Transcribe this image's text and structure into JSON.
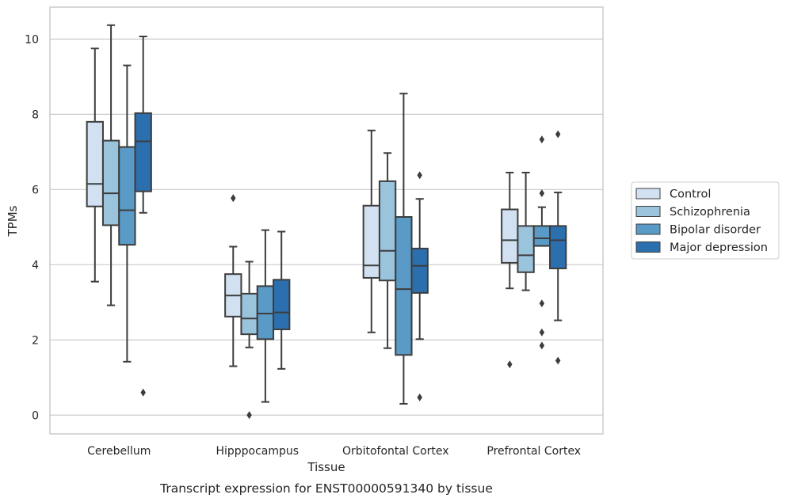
{
  "chart_data": {
    "type": "boxplot",
    "caption": "Transcript expression for ENST00000591340 by tissue",
    "xlabel": "Tissue",
    "ylabel": "TPMs",
    "ylim": [
      -0.5,
      10.85
    ],
    "yticks": [
      0,
      2,
      4,
      6,
      8,
      10
    ],
    "ytick_labels": [
      "0",
      "2",
      "4",
      "6",
      "8",
      "10"
    ],
    "grid": true,
    "legend_position": "right",
    "categories": [
      "Cerebellum",
      "Hipppocampus",
      "Orbitofontal Cortex",
      "Prefrontal Cortex"
    ],
    "series": [
      {
        "name": "Control",
        "color": "#d1e1f1",
        "boxes": [
          {
            "whislo": 3.55,
            "q1": 5.55,
            "med": 6.15,
            "q3": 7.8,
            "whishi": 9.75,
            "fliers": []
          },
          {
            "whislo": 1.3,
            "q1": 2.62,
            "med": 3.18,
            "q3": 3.75,
            "whishi": 4.48,
            "fliers": [
              5.77
            ]
          },
          {
            "whislo": 2.2,
            "q1": 3.65,
            "med": 3.98,
            "q3": 5.57,
            "whishi": 7.57,
            "fliers": []
          },
          {
            "whislo": 3.37,
            "q1": 4.05,
            "med": 4.65,
            "q3": 5.47,
            "whishi": 6.45,
            "fliers": [
              1.35
            ]
          }
        ]
      },
      {
        "name": "Schizophrenia",
        "color": "#9ac3dc",
        "boxes": [
          {
            "whislo": 2.92,
            "q1": 5.05,
            "med": 5.9,
            "q3": 7.3,
            "whishi": 10.37,
            "fliers": []
          },
          {
            "whislo": 1.8,
            "q1": 2.15,
            "med": 2.57,
            "q3": 3.23,
            "whishi": 4.08,
            "fliers": [
              0.0
            ]
          },
          {
            "whislo": 1.78,
            "q1": 3.58,
            "med": 4.37,
            "q3": 6.22,
            "whishi": 6.97,
            "fliers": []
          },
          {
            "whislo": 3.32,
            "q1": 3.8,
            "med": 4.25,
            "q3": 5.03,
            "whishi": 6.45,
            "fliers": []
          }
        ]
      },
      {
        "name": "Bipolar disorder",
        "color": "#5a9ac6",
        "boxes": [
          {
            "whislo": 1.42,
            "q1": 4.53,
            "med": 5.45,
            "q3": 7.13,
            "whishi": 9.3,
            "fliers": []
          },
          {
            "whislo": 0.35,
            "q1": 2.02,
            "med": 2.7,
            "q3": 3.43,
            "whishi": 4.92,
            "fliers": []
          },
          {
            "whislo": 0.3,
            "q1": 1.6,
            "med": 3.35,
            "q3": 5.27,
            "whishi": 8.55,
            "fliers": []
          },
          {
            "whislo": 4.5,
            "q1": 4.5,
            "med": 4.7,
            "q3": 5.03,
            "whishi": 5.53,
            "fliers": [
              7.33,
              5.9,
              2.97,
              2.2,
              1.85
            ]
          }
        ]
      },
      {
        "name": "Major depression",
        "color": "#2b6fae",
        "boxes": [
          {
            "whislo": 5.38,
            "q1": 5.95,
            "med": 7.28,
            "q3": 8.03,
            "whishi": 10.07,
            "fliers": [
              0.6
            ]
          },
          {
            "whislo": 1.23,
            "q1": 2.28,
            "med": 2.73,
            "q3": 3.6,
            "whishi": 4.88,
            "fliers": []
          },
          {
            "whislo": 2.02,
            "q1": 3.25,
            "med": 3.97,
            "q3": 4.43,
            "whishi": 5.75,
            "fliers": [
              6.38,
              0.47
            ]
          },
          {
            "whislo": 2.52,
            "q1": 3.9,
            "med": 4.65,
            "q3": 5.03,
            "whishi": 5.92,
            "fliers": [
              7.47,
              1.45
            ]
          }
        ]
      }
    ]
  }
}
